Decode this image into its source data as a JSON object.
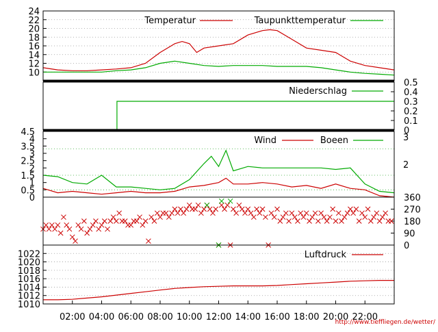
{
  "chart_data": [
    {
      "type": "line",
      "title": "",
      "ylim": [
        8,
        24
      ],
      "yticks": [
        "10",
        "12",
        "14",
        "16",
        "18",
        "20",
        "22",
        "24"
      ],
      "grid": true,
      "legend_position": "top-right",
      "series": [
        {
          "name": "Temperatur",
          "color": "#cc0000",
          "x": [
            0,
            1,
            2,
            3,
            4,
            5,
            6,
            7,
            8,
            9,
            9.5,
            10,
            10.5,
            11,
            12,
            13,
            14,
            15,
            15.5,
            16,
            17,
            18,
            19,
            20,
            21,
            22,
            23,
            24
          ],
          "values": [
            11,
            10.5,
            10.3,
            10.3,
            10.5,
            10.7,
            11,
            12,
            14.5,
            16.5,
            17,
            16.5,
            14.5,
            15.5,
            16,
            16.5,
            18.5,
            19.5,
            19.7,
            19.5,
            17.5,
            15.5,
            15,
            14.5,
            12.5,
            11.5,
            11,
            10.5
          ]
        },
        {
          "name": "Taupunkttemperatur",
          "color": "#00aa00",
          "x": [
            0,
            1,
            2,
            3,
            4,
            5,
            6,
            7,
            8,
            9,
            10,
            11,
            12,
            13,
            14,
            15,
            16,
            17,
            18,
            19,
            20,
            21,
            22,
            23,
            24
          ],
          "values": [
            10,
            10,
            10,
            10,
            10,
            10.3,
            10.5,
            11,
            12,
            12.5,
            12,
            11.5,
            11.3,
            11.5,
            11.5,
            11.5,
            11.3,
            11.3,
            11.3,
            11,
            10.5,
            10,
            9.7,
            9.5,
            9.3
          ]
        }
      ]
    },
    {
      "type": "line",
      "title": "",
      "ylim": [
        0,
        0.5
      ],
      "yticks": [
        "0",
        "0.1",
        "0.2",
        "0.3",
        "0.4",
        "0.5"
      ],
      "legend_position": "top-right",
      "series": [
        {
          "name": "Niederschlag",
          "color": "#00aa00",
          "x": [
            0,
            5.05,
            5.05,
            24
          ],
          "values": [
            0,
            0,
            0.3,
            0.3
          ]
        }
      ]
    },
    {
      "type": "line",
      "title": "",
      "ylim": [
        0,
        4.5
      ],
      "yticks": [
        "0",
        "0.5",
        "1",
        "1.5",
        "2",
        "2.5",
        "3",
        "3.5",
        "4",
        "4.5"
      ],
      "y2ticks": [
        "2",
        "3"
      ],
      "legend_position": "top-right",
      "series": [
        {
          "name": "Wind",
          "color": "#cc0000",
          "x": [
            0,
            1,
            2,
            3,
            4,
            5,
            6,
            7,
            8,
            9,
            10,
            11,
            12,
            12.5,
            13,
            14,
            15,
            16,
            17,
            18,
            19,
            20,
            21,
            22,
            23,
            24
          ],
          "values": [
            0.6,
            0.3,
            0.4,
            0.3,
            0.2,
            0.3,
            0.4,
            0.3,
            0.3,
            0.4,
            0.7,
            0.8,
            1.0,
            1.3,
            0.9,
            0.9,
            1.0,
            0.9,
            0.7,
            0.8,
            0.6,
            0.9,
            0.6,
            0.5,
            0.1,
            0
          ]
        },
        {
          "name": "Boeen",
          "color": "#00aa00",
          "x": [
            0,
            1,
            2,
            3,
            4,
            5,
            6,
            7,
            8,
            9,
            10,
            11,
            11.5,
            12,
            12.5,
            13,
            14,
            15,
            16,
            17,
            18,
            19,
            20,
            21,
            22,
            23,
            24
          ],
          "values": [
            1.5,
            1.4,
            1.0,
            0.9,
            1.5,
            0.7,
            0.7,
            0.6,
            0.5,
            0.6,
            1.2,
            2.3,
            2.8,
            2.1,
            3.2,
            1.8,
            2.1,
            2.0,
            2.0,
            2.0,
            2.0,
            2.0,
            1.9,
            2.0,
            0.9,
            0.4,
            0.3
          ]
        }
      ]
    },
    {
      "type": "scatter",
      "title": "",
      "ylim": [
        0,
        360
      ],
      "yticks": [
        "0",
        "90",
        "180",
        "270",
        "360"
      ],
      "series": [
        {
          "name": "",
          "color": "#cc0000",
          "points": [
            [
              0,
              120
            ],
            [
              0.2,
              150
            ],
            [
              0.4,
              120
            ],
            [
              0.6,
              150
            ],
            [
              0.8,
              120
            ],
            [
              1.0,
              150
            ],
            [
              1.2,
              90
            ],
            [
              1.4,
              210
            ],
            [
              1.6,
              150
            ],
            [
              1.8,
              120
            ],
            [
              2.0,
              60
            ],
            [
              2.2,
              30
            ],
            [
              2.4,
              150
            ],
            [
              2.6,
              120
            ],
            [
              2.8,
              180
            ],
            [
              3.0,
              90
            ],
            [
              3.2,
              120
            ],
            [
              3.4,
              150
            ],
            [
              3.6,
              180
            ],
            [
              3.8,
              120
            ],
            [
              4.0,
              150
            ],
            [
              4.2,
              180
            ],
            [
              4.4,
              120
            ],
            [
              4.6,
              180
            ],
            [
              4.8,
              210
            ],
            [
              5.0,
              180
            ],
            [
              5.2,
              240
            ],
            [
              5.4,
              180
            ],
            [
              5.6,
              180
            ],
            [
              5.8,
              150
            ],
            [
              6.0,
              150
            ],
            [
              6.2,
              180
            ],
            [
              6.4,
              180
            ],
            [
              6.6,
              210
            ],
            [
              6.8,
              150
            ],
            [
              7.0,
              180
            ],
            [
              7.2,
              30
            ],
            [
              7.4,
              210
            ],
            [
              7.6,
              180
            ],
            [
              7.8,
              240
            ],
            [
              8.0,
              210
            ],
            [
              8.2,
              240
            ],
            [
              8.4,
              240
            ],
            [
              8.6,
              210
            ],
            [
              8.8,
              240
            ],
            [
              9.0,
              270
            ],
            [
              9.2,
              240
            ],
            [
              9.4,
              270
            ],
            [
              9.6,
              240
            ],
            [
              9.8,
              270
            ],
            [
              10.0,
              300
            ],
            [
              10.2,
              270
            ],
            [
              10.4,
              270
            ],
            [
              10.6,
              300
            ],
            [
              10.8,
              240
            ],
            [
              11.0,
              270
            ],
            [
              11.2,
              300
            ],
            [
              11.4,
              270
            ],
            [
              11.6,
              240
            ],
            [
              11.8,
              270
            ],
            [
              12.0,
              0
            ],
            [
              12.2,
              300
            ],
            [
              12.4,
              270
            ],
            [
              12.6,
              300
            ],
            [
              12.8,
              0
            ],
            [
              13.0,
              270
            ],
            [
              13.2,
              240
            ],
            [
              13.4,
              300
            ],
            [
              13.6,
              270
            ],
            [
              13.8,
              240
            ],
            [
              14.0,
              270
            ],
            [
              14.2,
              240
            ],
            [
              14.4,
              210
            ],
            [
              14.6,
              270
            ],
            [
              14.8,
              240
            ],
            [
              15.0,
              270
            ],
            [
              15.2,
              210
            ],
            [
              15.4,
              0
            ],
            [
              15.6,
              240
            ],
            [
              15.8,
              210
            ],
            [
              16.0,
              270
            ],
            [
              16.2,
              180
            ],
            [
              16.4,
              210
            ],
            [
              16.6,
              240
            ],
            [
              16.8,
              180
            ],
            [
              17.0,
              240
            ],
            [
              17.2,
              210
            ],
            [
              17.4,
              180
            ],
            [
              17.6,
              240
            ],
            [
              17.8,
              210
            ],
            [
              18.0,
              240
            ],
            [
              18.2,
              180
            ],
            [
              18.4,
              210
            ],
            [
              18.6,
              240
            ],
            [
              18.8,
              180
            ],
            [
              19.0,
              240
            ],
            [
              19.2,
              210
            ],
            [
              19.4,
              180
            ],
            [
              19.6,
              210
            ],
            [
              19.8,
              270
            ],
            [
              20.0,
              180
            ],
            [
              20.2,
              240
            ],
            [
              20.4,
              180
            ],
            [
              20.6,
              210
            ],
            [
              20.8,
              240
            ],
            [
              21.0,
              270
            ],
            [
              21.2,
              240
            ],
            [
              21.4,
              270
            ],
            [
              21.6,
              180
            ],
            [
              21.8,
              240
            ],
            [
              22.0,
              210
            ],
            [
              22.2,
              270
            ],
            [
              22.4,
              180
            ],
            [
              22.6,
              210
            ],
            [
              22.8,
              240
            ],
            [
              23.0,
              180
            ],
            [
              23.2,
              210
            ],
            [
              23.4,
              240
            ],
            [
              23.6,
              180
            ],
            [
              23.8,
              180
            ]
          ]
        },
        {
          "name": "",
          "color": "#00aa00",
          "points": [
            [
              11.2,
              300
            ],
            [
              12.0,
              0
            ],
            [
              12.2,
              330
            ],
            [
              12.8,
              330
            ]
          ]
        }
      ]
    },
    {
      "type": "line",
      "title": "",
      "ylim": [
        1010,
        1024
      ],
      "yticks": [
        "1010",
        "1012",
        "1014",
        "1016",
        "1018",
        "1020",
        "1022"
      ],
      "legend_position": "top-right",
      "series": [
        {
          "name": "Luftdruck",
          "color": "#cc0000",
          "x": [
            0,
            1,
            2,
            3,
            4,
            5,
            6,
            7,
            8,
            9,
            10,
            11,
            12,
            13,
            14,
            15,
            16,
            17,
            18,
            19,
            20,
            21,
            22,
            23,
            24
          ],
          "values": [
            1011,
            1011,
            1011.1,
            1011.4,
            1011.7,
            1012.1,
            1012.5,
            1012.9,
            1013.3,
            1013.7,
            1013.9,
            1014.1,
            1014.2,
            1014.3,
            1014.3,
            1014.3,
            1014.4,
            1014.6,
            1014.8,
            1015.0,
            1015.2,
            1015.4,
            1015.5,
            1015.6,
            1015.6
          ]
        }
      ]
    }
  ],
  "x_axis": {
    "range_hours": [
      0,
      24
    ],
    "ticks": [
      {
        "hour": 2,
        "label": "02:00"
      },
      {
        "hour": 4,
        "label": "04:00"
      },
      {
        "hour": 6,
        "label": "06:00"
      },
      {
        "hour": 8,
        "label": "08:00"
      },
      {
        "hour": 10,
        "label": "10:00"
      },
      {
        "hour": 12,
        "label": "12:00"
      },
      {
        "hour": 14,
        "label": "14:00"
      },
      {
        "hour": 16,
        "label": "16:00"
      },
      {
        "hour": 18,
        "label": "18:00"
      },
      {
        "hour": 20,
        "label": "20:00"
      },
      {
        "hour": 22,
        "label": "22:00"
      }
    ]
  },
  "credit": "http://www.tieffliegen.de/wetter/"
}
